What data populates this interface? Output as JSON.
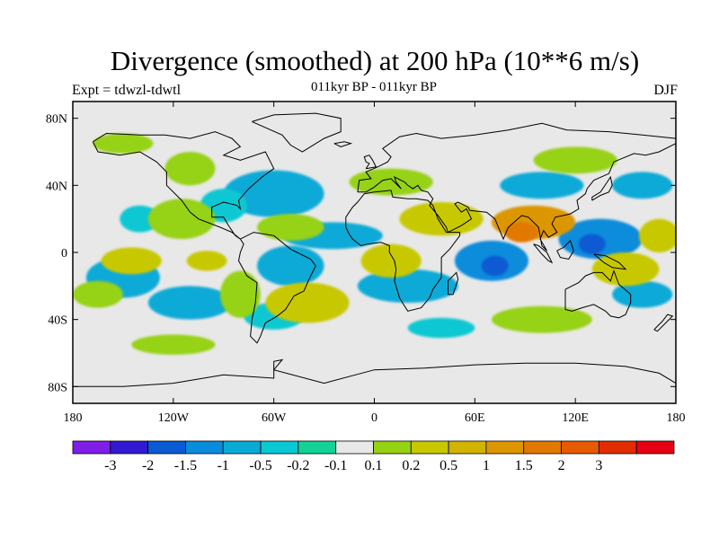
{
  "header": {
    "title": "Divergence (smoothed) at 200 hPa (10**6 m/s)",
    "subtitle": "011kyr BP - 011kyr BP",
    "experiment": "Expt = tdwzl-tdwtl",
    "season": "DJF"
  },
  "map": {
    "background_color": "#e8e8e8",
    "lon_range": [
      -180,
      180
    ],
    "lat_range": [
      -90,
      90
    ],
    "x_ticks": [
      {
        "lon": -180,
        "label": "180"
      },
      {
        "lon": -120,
        "label": "120W"
      },
      {
        "lon": -60,
        "label": "60W"
      },
      {
        "lon": 0,
        "label": "0"
      },
      {
        "lon": 60,
        "label": "60E"
      },
      {
        "lon": 120,
        "label": "120E"
      },
      {
        "lon": 180,
        "label": "180"
      }
    ],
    "y_ticks": [
      {
        "lat": 80,
        "label": "80N"
      },
      {
        "lat": 40,
        "label": "40N"
      },
      {
        "lat": 0,
        "label": "0"
      },
      {
        "lat": -40,
        "label": "40S"
      },
      {
        "lat": -80,
        "label": "80S"
      }
    ],
    "blobs": [
      {
        "lon": -60,
        "lat": 35,
        "rx": 30,
        "ry": 14,
        "level": -0.5
      },
      {
        "lon": -90,
        "lat": 28,
        "rx": 14,
        "ry": 10,
        "level": -0.2
      },
      {
        "lon": -25,
        "lat": 10,
        "rx": 30,
        "ry": 8,
        "level": -0.5
      },
      {
        "lon": -50,
        "lat": -8,
        "rx": 20,
        "ry": 12,
        "level": -0.5
      },
      {
        "lon": -150,
        "lat": -15,
        "rx": 22,
        "ry": 12,
        "level": -0.5
      },
      {
        "lon": -110,
        "lat": -30,
        "rx": 25,
        "ry": 10,
        "level": -0.5
      },
      {
        "lon": -60,
        "lat": -38,
        "rx": 18,
        "ry": 8,
        "level": -0.2
      },
      {
        "lon": 20,
        "lat": -20,
        "rx": 30,
        "ry": 10,
        "level": -0.5
      },
      {
        "lon": 70,
        "lat": -5,
        "rx": 22,
        "ry": 12,
        "level": -1
      },
      {
        "lon": 72,
        "lat": -8,
        "rx": 8,
        "ry": 6,
        "level": -1.5
      },
      {
        "lon": 135,
        "lat": 8,
        "rx": 25,
        "ry": 12,
        "level": -1
      },
      {
        "lon": 130,
        "lat": 5,
        "rx": 8,
        "ry": 6,
        "level": -1.5
      },
      {
        "lon": 100,
        "lat": 40,
        "rx": 25,
        "ry": 8,
        "level": -0.5
      },
      {
        "lon": 160,
        "lat": 40,
        "rx": 18,
        "ry": 8,
        "level": -0.5
      },
      {
        "lon": 160,
        "lat": -25,
        "rx": 18,
        "ry": 8,
        "level": -0.5
      },
      {
        "lon": -140,
        "lat": 20,
        "rx": 12,
        "ry": 8,
        "level": -0.2
      },
      {
        "lon": 40,
        "lat": -45,
        "rx": 20,
        "ry": 6,
        "level": -0.2
      },
      {
        "lon": -150,
        "lat": 65,
        "rx": 18,
        "ry": 6,
        "level": 0.2
      },
      {
        "lon": -110,
        "lat": 50,
        "rx": 15,
        "ry": 10,
        "level": 0.2
      },
      {
        "lon": -115,
        "lat": 20,
        "rx": 20,
        "ry": 12,
        "level": 0.2
      },
      {
        "lon": -145,
        "lat": -5,
        "rx": 18,
        "ry": 8,
        "level": 0.5
      },
      {
        "lon": -165,
        "lat": -25,
        "rx": 15,
        "ry": 8,
        "level": 0.2
      },
      {
        "lon": -80,
        "lat": -25,
        "rx": 12,
        "ry": 14,
        "level": 0.2
      },
      {
        "lon": -40,
        "lat": -30,
        "rx": 25,
        "ry": 12,
        "level": 0.5
      },
      {
        "lon": -50,
        "lat": 15,
        "rx": 20,
        "ry": 8,
        "level": 0.2
      },
      {
        "lon": 10,
        "lat": 42,
        "rx": 25,
        "ry": 8,
        "level": 0.2
      },
      {
        "lon": 40,
        "lat": 20,
        "rx": 25,
        "ry": 10,
        "level": 0.5
      },
      {
        "lon": 10,
        "lat": -5,
        "rx": 18,
        "ry": 10,
        "level": 0.5
      },
      {
        "lon": 95,
        "lat": 18,
        "rx": 25,
        "ry": 10,
        "level": 1
      },
      {
        "lon": 88,
        "lat": 12,
        "rx": 10,
        "ry": 6,
        "level": 1.5
      },
      {
        "lon": 120,
        "lat": 55,
        "rx": 25,
        "ry": 8,
        "level": 0.2
      },
      {
        "lon": 150,
        "lat": -10,
        "rx": 20,
        "ry": 10,
        "level": 0.5
      },
      {
        "lon": 100,
        "lat": -40,
        "rx": 30,
        "ry": 8,
        "level": 0.2
      },
      {
        "lon": -120,
        "lat": -55,
        "rx": 25,
        "ry": 6,
        "level": 0.2
      },
      {
        "lon": 170,
        "lat": 10,
        "rx": 12,
        "ry": 10,
        "level": 0.5
      },
      {
        "lon": -100,
        "lat": -5,
        "rx": 12,
        "ry": 6,
        "level": 0.5
      }
    ]
  },
  "colorbar": {
    "colors": [
      "#7f1ee6",
      "#3219d2",
      "#0a5ad2",
      "#0a8cdc",
      "#0aaad7",
      "#0ac8d2",
      "#14d296",
      "#e8e8e8",
      "#96d214",
      "#c8c800",
      "#d2b400",
      "#dc9600",
      "#e17800",
      "#e65a00",
      "#e12d00",
      "#e60014"
    ],
    "labels": [
      "-3",
      "-2",
      "-1.5",
      "-1",
      "-0.5",
      "-0.2",
      "-0.1",
      "0.1",
      "0.2",
      "0.5",
      "1",
      "1.5",
      "2",
      "3"
    ],
    "level_colors": {
      "-1.5": "#0a5ad2",
      "-1": "#0a8cdc",
      "-0.5": "#0aaad7",
      "-0.2": "#0ac8d2",
      "0.2": "#96d214",
      "0.5": "#c8c800",
      "1": "#dc9600",
      "1.5": "#e17800"
    }
  }
}
